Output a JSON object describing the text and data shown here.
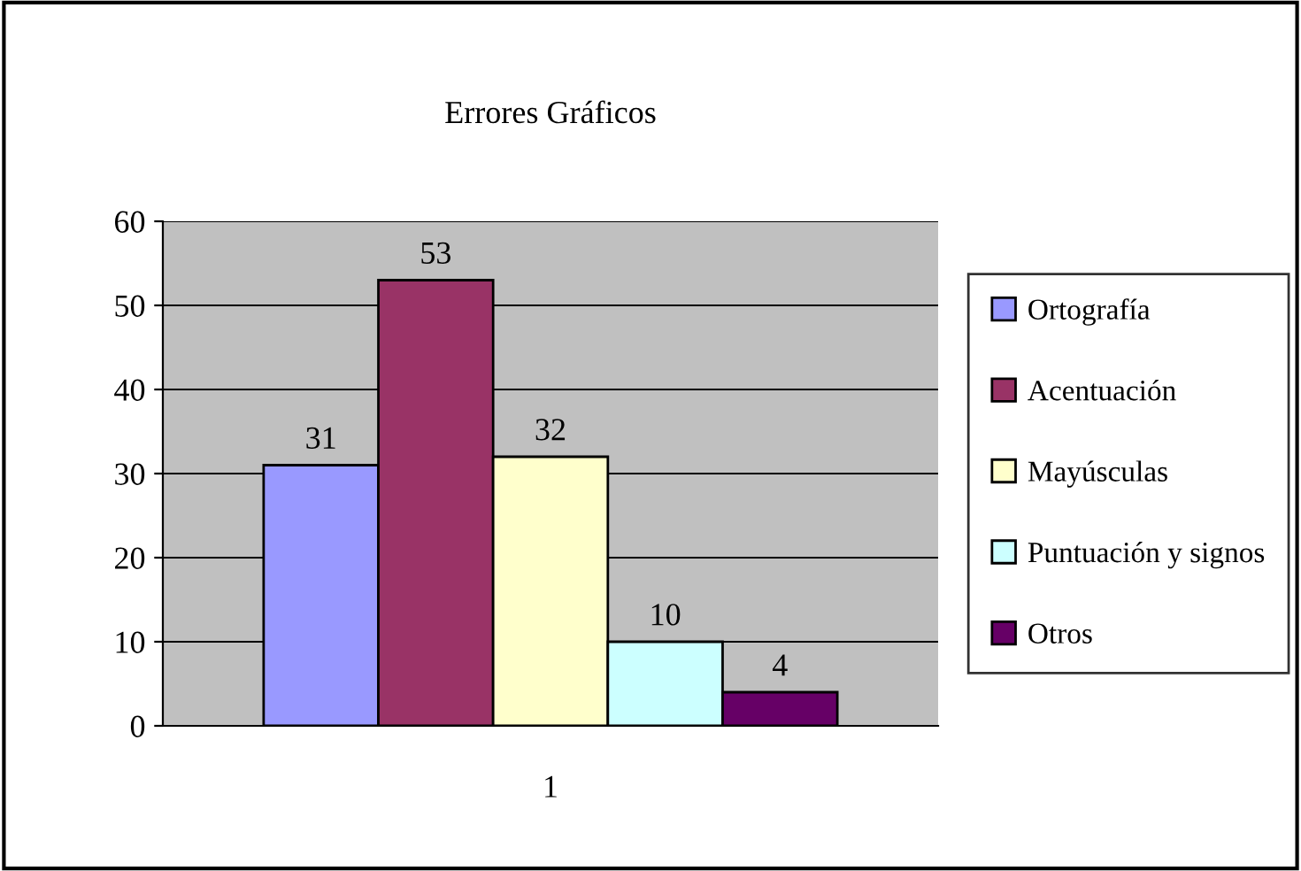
{
  "chart_data": {
    "type": "bar",
    "title": "Errores Gráficos",
    "categories": [
      "1"
    ],
    "series": [
      {
        "name": "Ortografía",
        "color": "#9999ff",
        "values": [
          31
        ]
      },
      {
        "name": "Acentuación",
        "color": "#993366",
        "values": [
          53
        ]
      },
      {
        "name": "Mayúsculas",
        "color": "#ffffcc",
        "values": [
          32
        ]
      },
      {
        "name": "Puntuación y signos",
        "color": "#ccffff",
        "values": [
          10
        ]
      },
      {
        "name": "Otros",
        "color": "#660066",
        "values": [
          4
        ]
      }
    ],
    "ylim": [
      0,
      60
    ],
    "yticks": [
      0,
      10,
      20,
      30,
      40,
      50,
      60
    ],
    "grid": "y",
    "legend": "right",
    "data_labels": true
  }
}
